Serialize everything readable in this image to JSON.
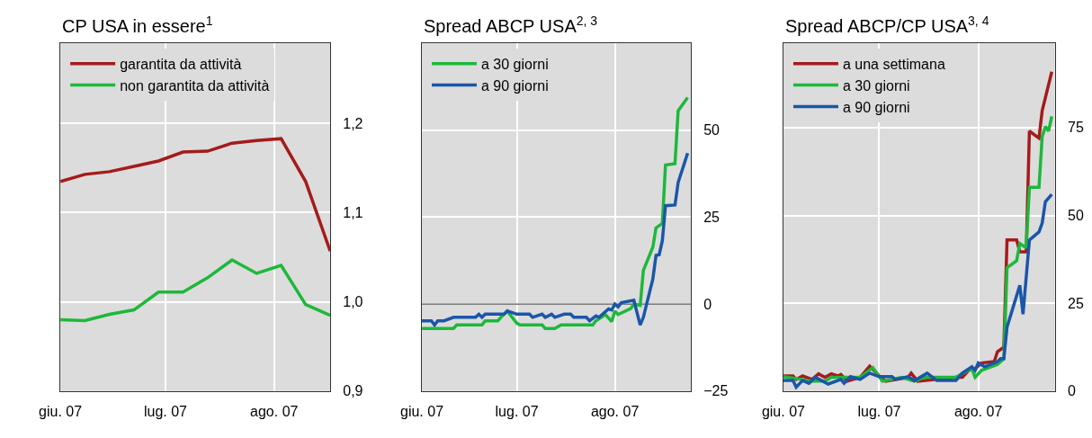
{
  "chart_data": [
    {
      "type": "line",
      "title": "CP USA in essere$^{1}$",
      "xlim": [
        "2007-06-01",
        "2007-08-17"
      ],
      "xticks": [
        {
          "value": "2007-06-01",
          "label": "giu. 07"
        },
        {
          "value": "2007-07-01",
          "label": "lug. 07"
        },
        {
          "value": "2007-08-01",
          "label": "ago. 07"
        }
      ],
      "ylim": [
        0.9,
        1.29
      ],
      "yticks": [
        {
          "value": 0.9,
          "label": "0,9"
        },
        {
          "value": 1.0,
          "label": "1,0"
        },
        {
          "value": 1.1,
          "label": "1,1"
        },
        {
          "value": 1.2,
          "label": "1,2"
        }
      ],
      "grid": true,
      "legend": "top left",
      "x": [
        "2007-06-01",
        "2007-06-08",
        "2007-06-15",
        "2007-06-22",
        "2007-06-29",
        "2007-07-06",
        "2007-07-13",
        "2007-07-20",
        "2007-07-27",
        "2007-08-03",
        "2007-08-10",
        "2007-08-17"
      ],
      "series": [
        {
          "name": "garantita da attività",
          "color": "#a51b1b",
          "values": [
            1.135,
            1.143,
            1.146,
            1.152,
            1.158,
            1.168,
            1.169,
            1.178,
            1.181,
            1.183,
            1.135,
            1.057
          ]
        },
        {
          "name": "non garantita da attività",
          "color": "#1db83a",
          "values": [
            0.98,
            0.979,
            0.986,
            0.991,
            1.011,
            1.011,
            1.027,
            1.047,
            1.032,
            1.041,
            0.997,
            0.985
          ]
        }
      ]
    },
    {
      "type": "line",
      "title": "Spread ABCP USA$^{2, 3}$",
      "xlim": [
        "2007-06-01",
        "2007-08-25"
      ],
      "xticks": [
        {
          "value": "2007-06-01",
          "label": "giu. 07"
        },
        {
          "value": "2007-07-01",
          "label": "lug. 07"
        },
        {
          "value": "2007-08-01",
          "label": "ago. 07"
        }
      ],
      "ylim": [
        -25,
        75
      ],
      "yticks": [
        {
          "value": -25,
          "label": "−25"
        },
        0,
        25,
        50
      ],
      "grid": true,
      "legend": "top left",
      "ref_lines": [
        {
          "axis": "y",
          "value": 0,
          "color": "#555555"
        }
      ],
      "series": [
        {
          "name": "a 30 giorni",
          "color": "#1db83a",
          "x": [
            "2007-06-01",
            "2007-06-11",
            "2007-06-12",
            "2007-06-20",
            "2007-06-21",
            "2007-06-25",
            "2007-06-26",
            "2007-06-28",
            "2007-07-01",
            "2007-07-02",
            "2007-07-09",
            "2007-07-10",
            "2007-07-13",
            "2007-07-15",
            "2007-07-25",
            "2007-07-26",
            "2007-07-29",
            "2007-07-31",
            "2007-08-01",
            "2007-08-02",
            "2007-08-06",
            "2007-08-07",
            "2007-08-09",
            "2007-08-10",
            "2007-08-13",
            "2007-08-14",
            "2007-08-16",
            "2007-08-17",
            "2007-08-20",
            "2007-08-21",
            "2007-08-24"
          ],
          "values": [
            -7,
            -7,
            -6,
            -6,
            -4.8,
            -4.8,
            -3.8,
            -2,
            -5.5,
            -6,
            -6,
            -7,
            -7,
            -6,
            -6,
            -4.8,
            -3,
            -5,
            -2,
            -3,
            -1.3,
            0,
            -0.4,
            9.7,
            16.4,
            21.9,
            23.2,
            40,
            40.4,
            55.6,
            59.4
          ]
        },
        {
          "name": "a 90 giorni",
          "color": "#1a56a8",
          "x": [
            "2007-06-01",
            "2007-06-04",
            "2007-06-05",
            "2007-06-06",
            "2007-06-08",
            "2007-06-11",
            "2007-06-18",
            "2007-06-19",
            "2007-06-20",
            "2007-06-21",
            "2007-06-27",
            "2007-06-28",
            "2007-07-01",
            "2007-07-05",
            "2007-07-06",
            "2007-07-09",
            "2007-07-10",
            "2007-07-12",
            "2007-07-13",
            "2007-07-16",
            "2007-07-18",
            "2007-07-19",
            "2007-07-23",
            "2007-07-24",
            "2007-07-26",
            "2007-07-27",
            "2007-07-30",
            "2007-07-31",
            "2007-08-01",
            "2007-08-02",
            "2007-08-03",
            "2007-08-07",
            "2007-08-09",
            "2007-08-10",
            "2007-08-13",
            "2007-08-14",
            "2007-08-15",
            "2007-08-16",
            "2007-08-17",
            "2007-08-20",
            "2007-08-21",
            "2007-08-24"
          ],
          "values": [
            -4.8,
            -4.8,
            -6,
            -4.8,
            -4.8,
            -3.8,
            -3.8,
            -2.9,
            -3.8,
            -2.9,
            -2.9,
            -2,
            -2.9,
            -2.9,
            -3.8,
            -2.9,
            -3.8,
            -2.9,
            -3.8,
            -2.9,
            -2.9,
            -3.8,
            -3.8,
            -4.8,
            -3.4,
            -3.8,
            -1.4,
            -1.7,
            0,
            -0.8,
            0.4,
            1.1,
            -6,
            -3.8,
            7.2,
            14,
            14.2,
            18.2,
            28.3,
            28.5,
            35,
            43.4
          ]
        }
      ]
    },
    {
      "type": "line",
      "title": "Spread ABCP/CP USA$^{3, 4}$",
      "xlim": [
        "2007-06-01",
        "2007-08-25"
      ],
      "xticks": [
        {
          "value": "2007-06-01",
          "label": "giu. 07"
        },
        {
          "value": "2007-07-01",
          "label": "lug. 07"
        },
        {
          "value": "2007-08-01",
          "label": "ago. 07"
        }
      ],
      "ylim": [
        0,
        99
      ],
      "yticks": [
        0,
        25,
        50,
        75
      ],
      "grid": true,
      "legend": "top left",
      "series": [
        {
          "name": "a una settimana",
          "color": "#a51b1b",
          "x": [
            "2007-06-01",
            "2007-06-04",
            "2007-06-05",
            "2007-06-07",
            "2007-06-10",
            "2007-06-12",
            "2007-06-14",
            "2007-06-16",
            "2007-06-18",
            "2007-06-19",
            "2007-06-21",
            "2007-06-25",
            "2007-06-28",
            "2007-07-01",
            "2007-07-03",
            "2007-07-10",
            "2007-07-11",
            "2007-07-13",
            "2007-07-25",
            "2007-07-27",
            "2007-07-29",
            "2007-07-31",
            "2007-08-02",
            "2007-08-06",
            "2007-08-07",
            "2007-08-09",
            "2007-08-10",
            "2007-08-13",
            "2007-08-14",
            "2007-08-16",
            "2007-08-17",
            "2007-08-20",
            "2007-08-21",
            "2007-08-24"
          ],
          "values": [
            4.3,
            4.3,
            3.3,
            4.3,
            3.3,
            4.9,
            3.9,
            4.9,
            4.3,
            4.7,
            2.8,
            3.9,
            7.1,
            4.3,
            2.8,
            3.9,
            5.1,
            2.8,
            3.9,
            3.9,
            5.9,
            6.3,
            8,
            8.4,
            11.2,
            12.5,
            43,
            43,
            39.6,
            39.6,
            74,
            72,
            79.8,
            90.9
          ]
        },
        {
          "name": "a 30 giorni",
          "color": "#1db83a",
          "x": [
            "2007-06-01",
            "2007-06-10",
            "2007-06-14",
            "2007-06-16",
            "2007-06-21",
            "2007-06-25",
            "2007-06-29",
            "2007-07-02",
            "2007-07-08",
            "2007-07-12",
            "2007-07-15",
            "2007-07-25",
            "2007-07-28",
            "2007-07-30",
            "2007-07-31",
            "2007-08-02",
            "2007-08-07",
            "2007-08-09",
            "2007-08-10",
            "2007-08-13",
            "2007-08-14",
            "2007-08-16",
            "2007-08-17",
            "2007-08-20",
            "2007-08-21",
            "2007-08-22",
            "2007-08-23",
            "2007-08-24"
          ],
          "values": [
            4.1,
            2.8,
            2.8,
            3.9,
            3.9,
            3.9,
            6.7,
            2.8,
            3.9,
            2.8,
            3.9,
            3.9,
            5.5,
            6.3,
            3.9,
            5.9,
            7.6,
            9.2,
            35.1,
            37.1,
            42,
            40.8,
            58,
            58,
            72.4,
            75.3,
            74,
            78.2
          ]
        },
        {
          "name": "a 90 giorni",
          "color": "#1a56a8",
          "x": [
            "2007-06-01",
            "2007-06-04",
            "2007-06-05",
            "2007-06-07",
            "2007-06-09",
            "2007-06-11",
            "2007-06-13",
            "2007-06-15",
            "2007-06-19",
            "2007-06-20",
            "2007-06-22",
            "2007-06-25",
            "2007-06-28",
            "2007-07-01",
            "2007-07-05",
            "2007-07-06",
            "2007-07-10",
            "2007-07-12",
            "2007-07-16",
            "2007-07-19",
            "2007-07-25",
            "2007-07-27",
            "2007-07-30",
            "2007-07-31",
            "2007-08-01",
            "2007-08-03",
            "2007-08-07",
            "2007-08-08",
            "2007-08-09",
            "2007-08-10",
            "2007-08-14",
            "2007-08-15",
            "2007-08-17",
            "2007-08-20",
            "2007-08-21",
            "2007-08-22",
            "2007-08-24"
          ],
          "values": [
            3,
            3,
            1.1,
            3,
            2.2,
            3.9,
            3,
            2,
            3.3,
            2.2,
            4.1,
            3.3,
            5.1,
            4.1,
            4.1,
            3.3,
            4.1,
            3,
            5.1,
            3,
            3,
            5.1,
            6.9,
            5.9,
            8,
            6.9,
            8.4,
            9.2,
            9.2,
            18.2,
            30.1,
            21.9,
            43,
            45.3,
            47.8,
            53.9,
            56
          ]
        }
      ]
    }
  ]
}
